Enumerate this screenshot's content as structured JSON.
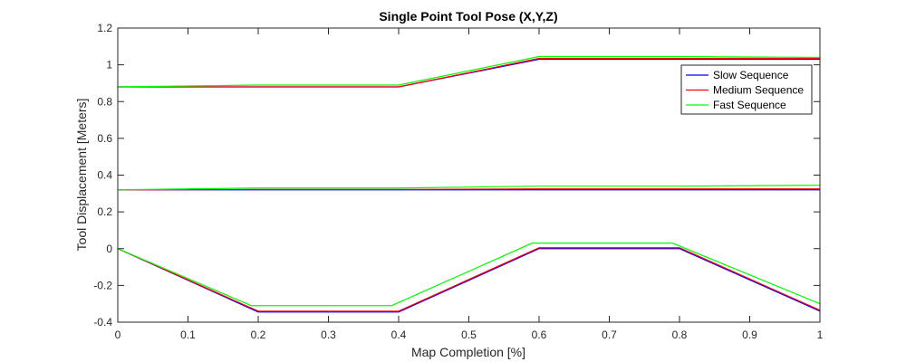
{
  "chart_data": {
    "type": "line",
    "title": "Single Point Tool Pose (X,Y,Z)",
    "xlabel": "Map Completion [%]",
    "ylabel": "Tool Displacement [Meters]",
    "xlim": [
      0,
      1
    ],
    "ylim": [
      -0.4,
      1.2
    ],
    "xticks": [
      0,
      0.1,
      0.2,
      0.3,
      0.4,
      0.5,
      0.6,
      0.7,
      0.8,
      0.9,
      1
    ],
    "xtick_labels": [
      "0",
      "0.1",
      "0.2",
      "0.3",
      "0.4",
      "0.5",
      "0.6",
      "0.7",
      "0.8",
      "0.9",
      "1"
    ],
    "yticks": [
      -0.4,
      -0.2,
      0,
      0.2,
      0.4,
      0.6,
      0.8,
      1,
      1.2
    ],
    "ytick_labels": [
      "-0.4",
      "-0.2",
      "0",
      "0.2",
      "0.4",
      "0.6",
      "0.8",
      "1",
      "1.2"
    ],
    "grid": false,
    "legend_position": "top-right",
    "legend_entries": [
      "Slow Sequence",
      "Medium Sequence",
      "Fast Sequence"
    ],
    "series": [
      {
        "name": "Slow Sequence",
        "color": "#0000ff",
        "component": "X",
        "x": [
          0,
          0.2,
          0.4,
          0.6,
          0.8,
          1
        ],
        "y": [
          0.88,
          0.88,
          0.88,
          1.03,
          1.03,
          1.03
        ]
      },
      {
        "name": "Medium Sequence",
        "color": "#ff0000",
        "component": "X",
        "x": [
          0,
          0.2,
          0.4,
          0.6,
          0.8,
          1
        ],
        "y": [
          0.88,
          0.88,
          0.88,
          1.035,
          1.035,
          1.035
        ]
      },
      {
        "name": "Fast Sequence",
        "color": "#00ff00",
        "component": "X",
        "x": [
          0,
          0.2,
          0.4,
          0.6,
          0.8,
          1
        ],
        "y": [
          0.88,
          0.89,
          0.89,
          1.045,
          1.045,
          1.04
        ]
      },
      {
        "name": "Slow Sequence",
        "color": "#0000ff",
        "component": "Y",
        "x": [
          0,
          0.2,
          0.4,
          0.6,
          0.8,
          1
        ],
        "y": [
          0.32,
          0.32,
          0.32,
          0.32,
          0.32,
          0.32
        ]
      },
      {
        "name": "Medium Sequence",
        "color": "#ff0000",
        "component": "Y",
        "x": [
          0,
          0.2,
          0.4,
          0.6,
          0.8,
          1
        ],
        "y": [
          0.32,
          0.322,
          0.322,
          0.325,
          0.325,
          0.325
        ]
      },
      {
        "name": "Fast Sequence",
        "color": "#00ff00",
        "component": "Y",
        "x": [
          0,
          0.2,
          0.4,
          0.6,
          0.8,
          1
        ],
        "y": [
          0.32,
          0.33,
          0.33,
          0.34,
          0.34,
          0.345
        ]
      },
      {
        "name": "Slow Sequence",
        "color": "#0000ff",
        "component": "Z",
        "x": [
          0,
          0.2,
          0.4,
          0.6,
          0.8,
          1
        ],
        "y": [
          0,
          -0.345,
          -0.345,
          0,
          0,
          -0.34
        ]
      },
      {
        "name": "Medium Sequence",
        "color": "#ff0000",
        "component": "Z",
        "x": [
          0,
          0.2,
          0.4,
          0.6,
          0.8,
          1
        ],
        "y": [
          0,
          -0.34,
          -0.34,
          0.005,
          0.005,
          -0.335
        ]
      },
      {
        "name": "Fast Sequence",
        "color": "#00ff00",
        "component": "Z",
        "x": [
          0,
          0.19,
          0.39,
          0.59,
          0.79,
          1
        ],
        "y": [
          0,
          -0.31,
          -0.31,
          0.03,
          0.03,
          -0.3
        ]
      }
    ]
  }
}
